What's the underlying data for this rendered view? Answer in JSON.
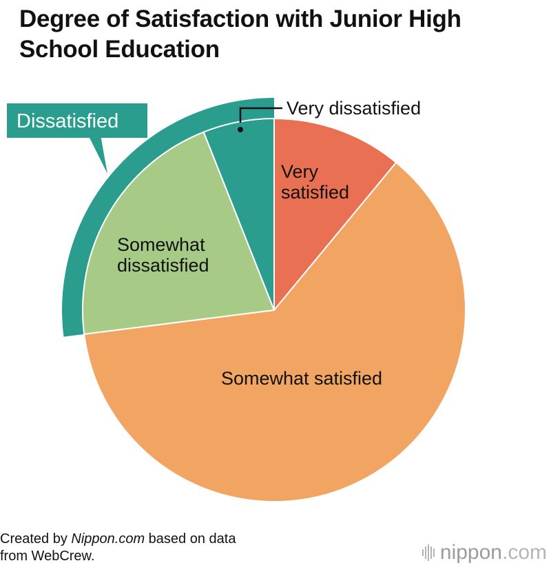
{
  "title": "Degree of Satisfaction with Junior High School Education",
  "chart_data": {
    "type": "pie",
    "title": "Degree of Satisfaction with Junior High School Education",
    "slices": [
      {
        "label": "Very satisfied",
        "value": 11,
        "color": "#E97052"
      },
      {
        "label": "Somewhat satisfied",
        "value": 62,
        "color": "#F2A462"
      },
      {
        "label": "Somewhat dissatisfied",
        "value": 21,
        "color": "#A7CB87"
      },
      {
        "label": "Very dissatisfied",
        "value": 6,
        "color": "#2A9D8F"
      }
    ],
    "group_annotation": {
      "label": "Dissatisfied",
      "members": [
        "Somewhat dissatisfied",
        "Very dissatisfied"
      ],
      "color": "#2A9D8F"
    }
  },
  "credit": {
    "prefix": "Created by ",
    "source": "Nippon.com",
    "suffix": " based on data",
    "line2": "from WebCrew."
  },
  "logo": {
    "name": "nippon",
    "suffix": ".com"
  }
}
